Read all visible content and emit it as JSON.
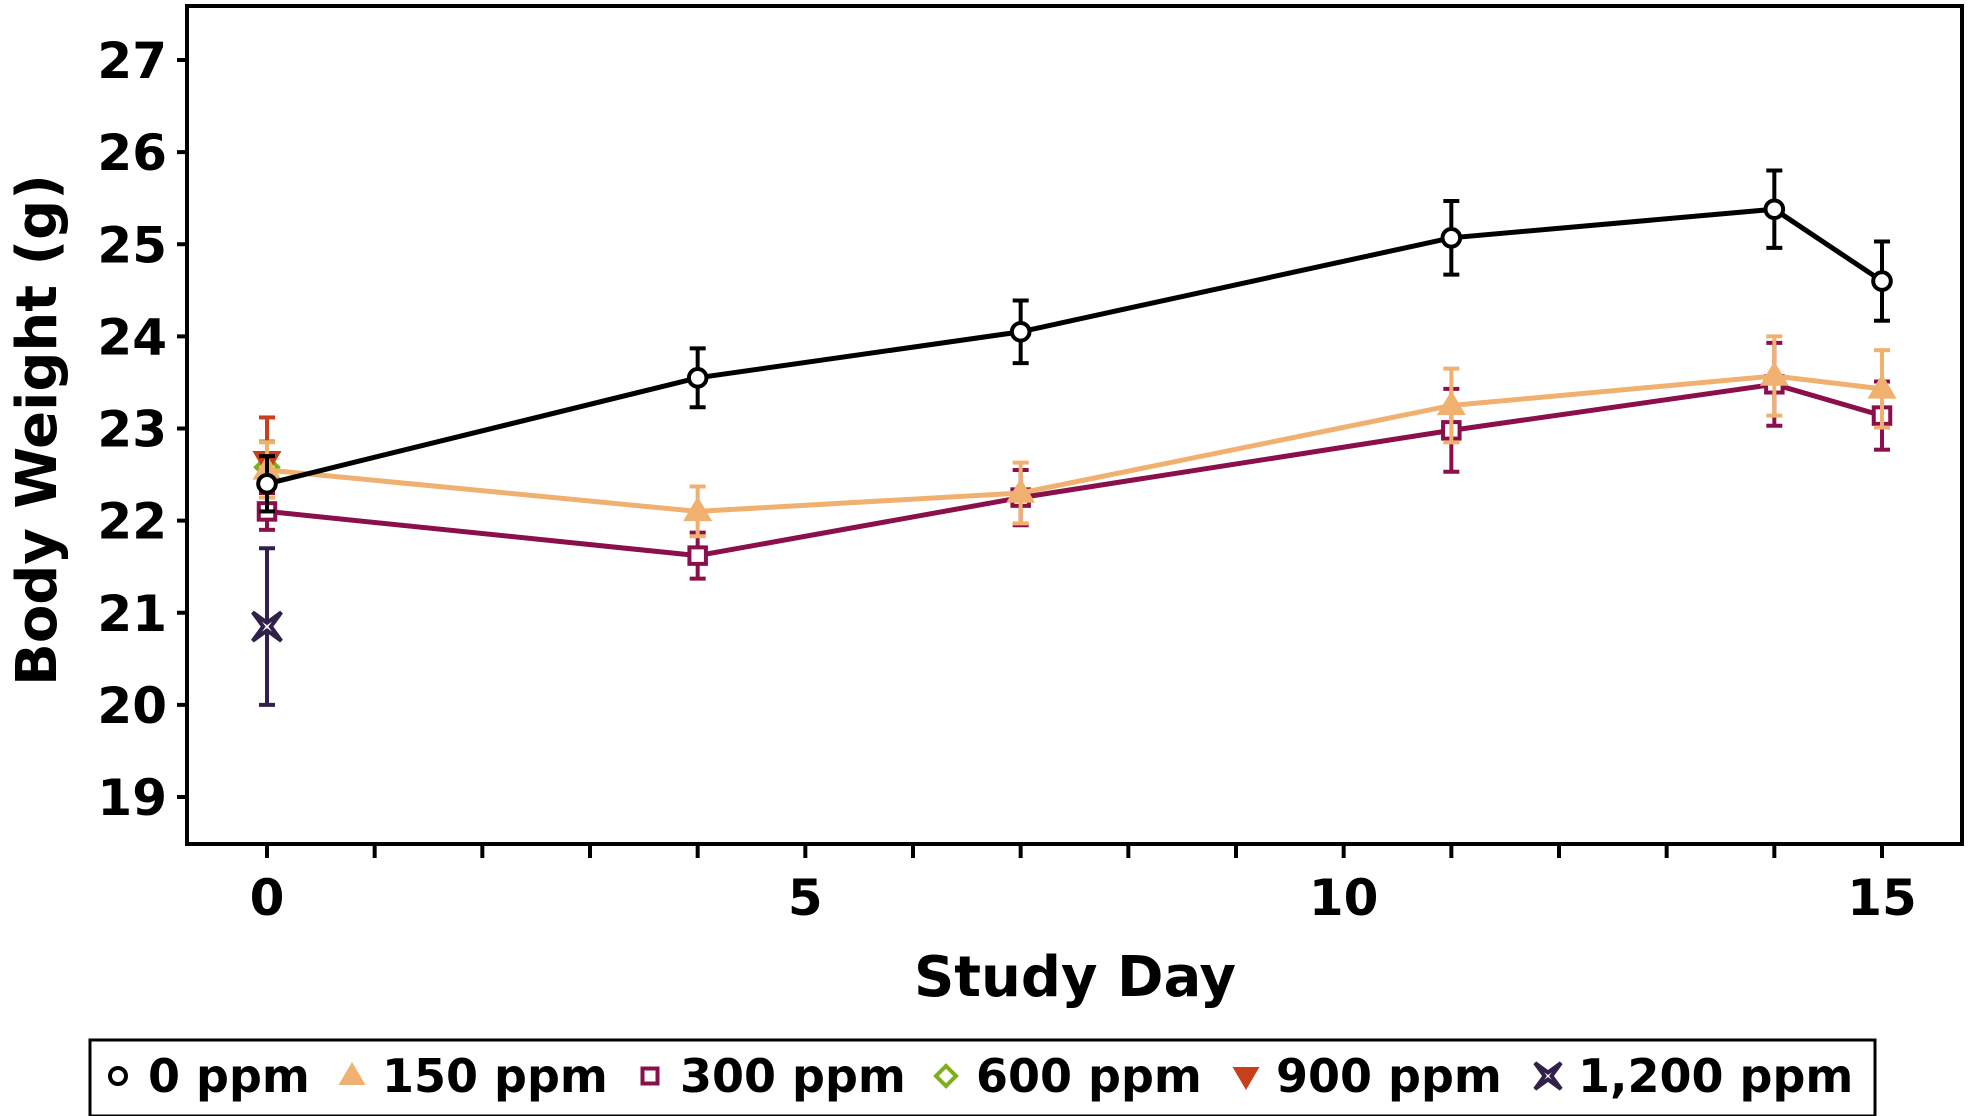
{
  "chart_data": {
    "type": "line",
    "title": "",
    "xlabel": "Study Day",
    "ylabel": "Body Weight (g)",
    "xlim": [
      -0.75,
      15.75
    ],
    "ylim": [
      18.5,
      27.6
    ],
    "x_major_ticks": [
      0,
      5,
      10,
      15
    ],
    "x_minor_ticks": [
      1,
      2,
      3,
      4,
      6,
      7,
      8,
      9,
      11,
      12,
      13,
      14
    ],
    "y_ticks": [
      19,
      20,
      21,
      22,
      23,
      24,
      25,
      26,
      27
    ],
    "grid": false,
    "legend_position": "bottom",
    "series": [
      {
        "name": "0 ppm",
        "color": "#000000",
        "marker": "circle",
        "x": [
          0,
          4,
          7,
          11,
          14,
          15
        ],
        "y": [
          22.4,
          23.55,
          24.05,
          25.07,
          25.38,
          24.6
        ],
        "err": [
          0.3,
          0.32,
          0.34,
          0.4,
          0.42,
          0.43
        ]
      },
      {
        "name": "150 ppm",
        "color": "#F0B070",
        "marker": "triangle-up",
        "x": [
          0,
          4,
          7,
          11,
          14,
          15
        ],
        "y": [
          22.55,
          22.1,
          22.3,
          23.25,
          23.57,
          23.43
        ],
        "err": [
          0.3,
          0.27,
          0.33,
          0.4,
          0.43,
          0.42
        ]
      },
      {
        "name": "300 ppm",
        "color": "#8A0F4A",
        "marker": "square",
        "x": [
          0,
          4,
          7,
          11,
          14,
          15
        ],
        "y": [
          22.1,
          21.62,
          22.25,
          22.98,
          23.48,
          23.14
        ],
        "err": [
          0.2,
          0.25,
          0.3,
          0.45,
          0.45,
          0.37
        ]
      },
      {
        "name": "600 ppm",
        "color": "#7FAF1B",
        "marker": "diamond",
        "x": [
          0
        ],
        "y": [
          22.58
        ],
        "err": [
          0.28
        ]
      },
      {
        "name": "900 ppm",
        "color": "#C8401A",
        "marker": "triangle-down",
        "x": [
          0
        ],
        "y": [
          22.65
        ],
        "err": [
          0.47
        ]
      },
      {
        "name": "1,200 ppm",
        "color": "#30204A",
        "marker": "star4",
        "x": [
          0
        ],
        "y": [
          20.85
        ],
        "err": [
          0.85
        ]
      }
    ]
  }
}
